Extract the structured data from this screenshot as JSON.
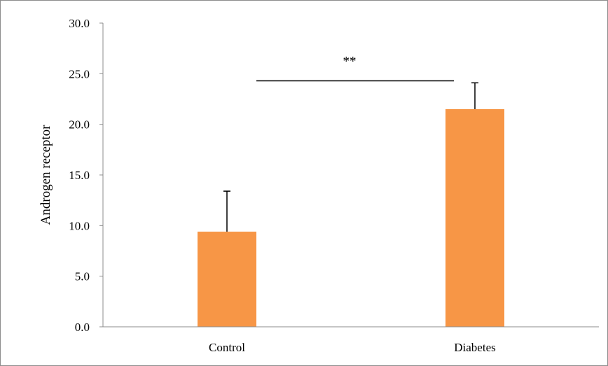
{
  "chart_data": {
    "type": "bar",
    "categories": [
      "Control",
      "Diabetes"
    ],
    "values": [
      9.4,
      21.5
    ],
    "error": [
      4.0,
      2.6
    ],
    "ylabel": "Androgen receptor",
    "xlabel": "",
    "ylim": [
      0,
      30
    ],
    "yticks": [
      "0.0",
      "5.0",
      "10.0",
      "15.0",
      "20.0",
      "25.0",
      "30.0"
    ],
    "grid": false,
    "significance": {
      "label": "**",
      "y": 24.3
    },
    "colors": {
      "bar": "#F79646",
      "axis": "#8c8c8c",
      "text": "#000000"
    }
  }
}
